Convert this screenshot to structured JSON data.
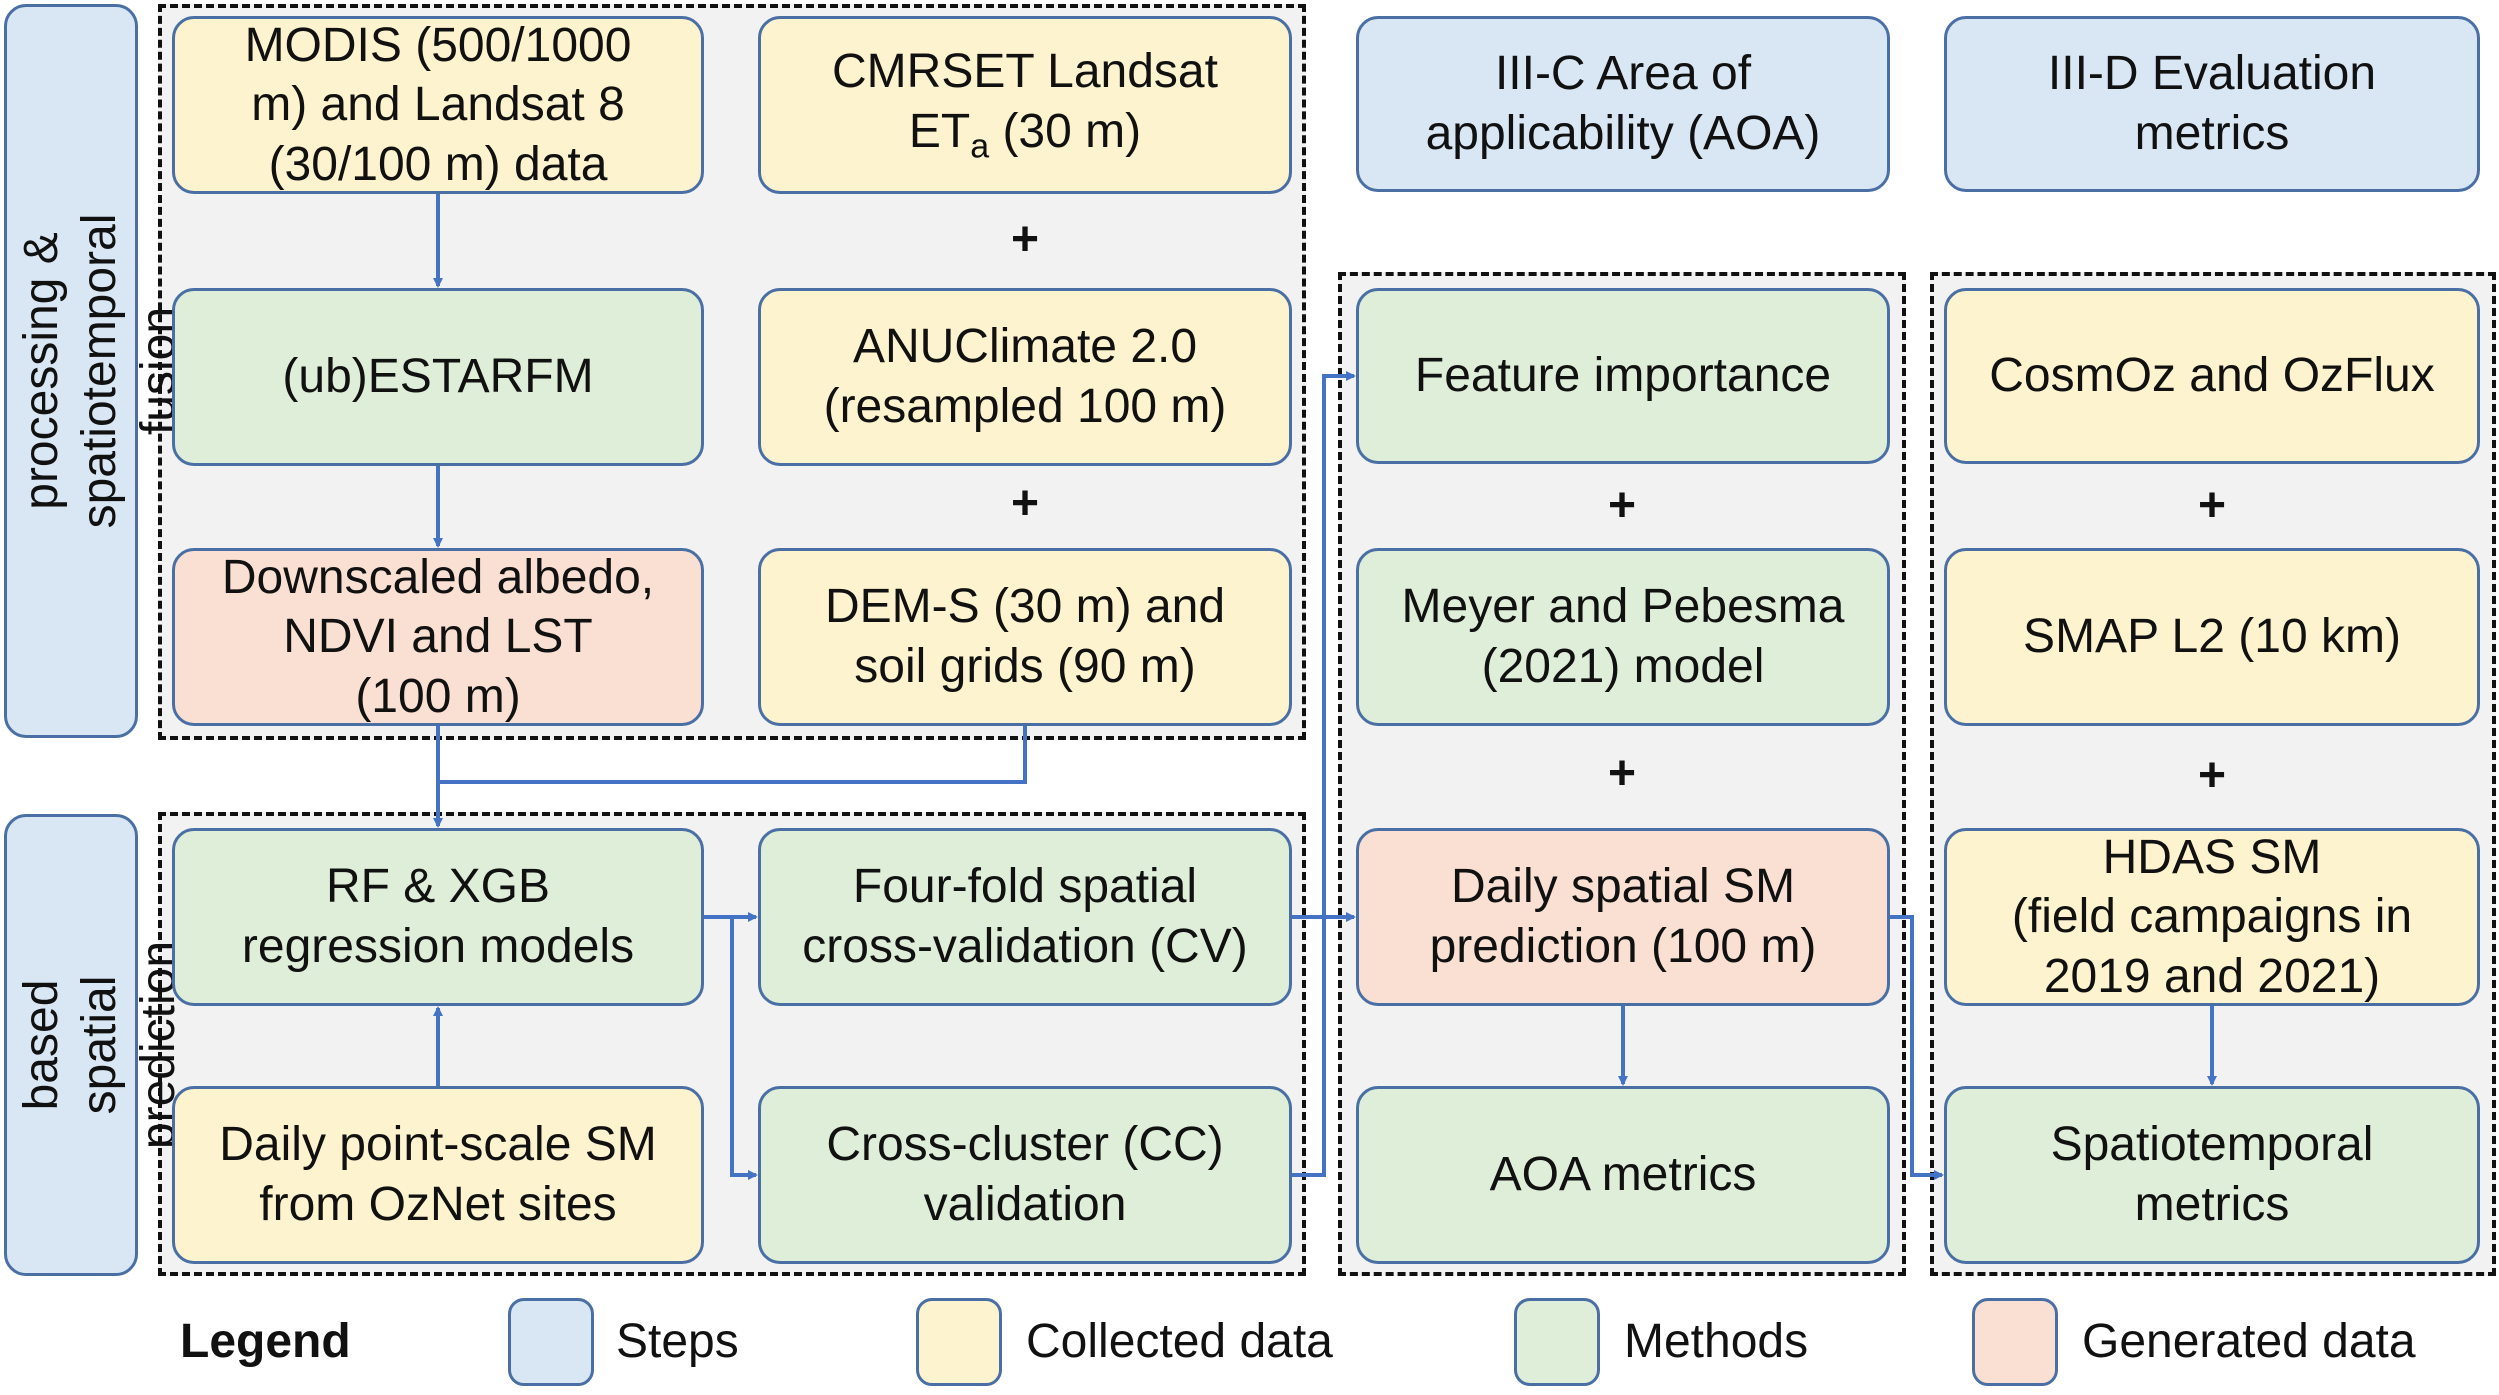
{
  "steps": {
    "preprocessing": "III-A Pre-processing &\nspatiotemporal fusion",
    "ml_prediction": "III-B ML-based\nspatial prediction",
    "aoa": "III-C Area of\napplicability (AOA)",
    "evaluation": "III-D Evaluation\nmetrics"
  },
  "boxes": {
    "modis_landsat": "MODIS (500/1000\nm) and Landsat 8\n(30/100 m) data",
    "cmrset_prefix": "CMRSET Landsat\nET",
    "cmrset_sub": "a",
    "cmrset_suffix": " (30 m)",
    "ubestarfm": "(ub)ESTARFM",
    "anuclimate": "ANUClimate 2.0\n(resampled 100 m)",
    "downscaled": "Downscaled albedo,\nNDVI and LST\n(100 m)",
    "dem_soil": "DEM-S (30 m) and\nsoil grids (90 m)",
    "rf_xgb": "RF & XGB\nregression models",
    "fourfold_cv": "Four-fold spatial\ncross-validation (CV)",
    "daily_point_sm": "Daily point-scale SM\nfrom OzNet sites",
    "cross_cluster": "Cross-cluster (CC)\nvalidation",
    "feature_importance": "Feature importance",
    "meyer_pebesma": "Meyer and Pebesma\n(2021) model",
    "daily_spatial_sm": "Daily spatial SM\nprediction (100 m)",
    "aoa_metrics": "AOA metrics",
    "cosmoz_ozflux": "CosmOz and OzFlux",
    "smap_l2": "SMAP L2 (10 km)",
    "hdas_sm": "HDAS SM\n(field campaigns in\n2019 and 2021)",
    "spatiotemporal_metrics": "Spatiotemporal\nmetrics"
  },
  "plus_sign": "+",
  "legend": {
    "title": "Legend",
    "steps": "Steps",
    "collected": "Collected data",
    "methods": "Methods",
    "generated": "Generated data"
  },
  "colors": {
    "steps": "#d9e6f4",
    "collected": "#fef3cf",
    "methods": "#dfeed9",
    "generated": "#f9e0d3",
    "arrow": "#4472c4",
    "border": "#4a6fa5"
  }
}
